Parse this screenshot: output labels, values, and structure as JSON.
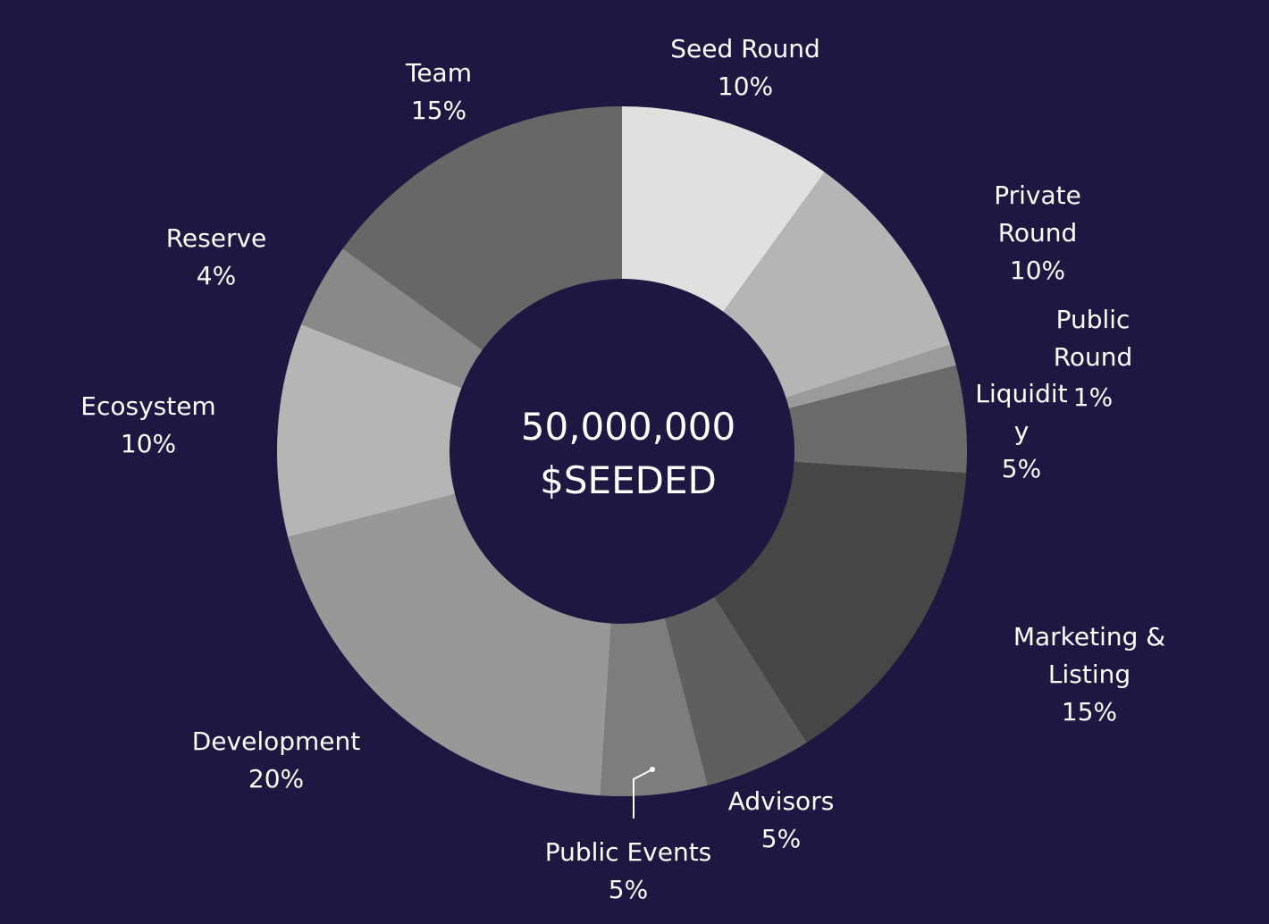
{
  "chart_data": {
    "type": "pie",
    "center": {
      "line1": "50,000,000",
      "line2": "$SEEDED"
    },
    "slices": [
      {
        "name": "Seed Round",
        "label_lines": [
          "Seed Round"
        ],
        "value": 10,
        "value_label": "10%",
        "color": "#e0e0e0"
      },
      {
        "name": "Private Round",
        "label_lines": [
          "Private",
          "Round"
        ],
        "value": 10,
        "value_label": "10%",
        "color": "#b5b5b5"
      },
      {
        "name": "Public Round",
        "label_lines": [
          "Public",
          "Round"
        ],
        "value": 1,
        "value_label": "1%",
        "color": "#9b9b9b"
      },
      {
        "name": "Liquidity",
        "label_lines": [
          "Liquidit",
          "y"
        ],
        "value": 5,
        "value_label": "5%",
        "color": "#6a6a6a"
      },
      {
        "name": "Marketing & Listing",
        "label_lines": [
          "Marketing &",
          "Listing"
        ],
        "value": 15,
        "value_label": "15%",
        "color": "#464646"
      },
      {
        "name": "Advisors",
        "label_lines": [
          "Advisors"
        ],
        "value": 5,
        "value_label": "5%",
        "color": "#5f5f5f"
      },
      {
        "name": "Public Events",
        "label_lines": [
          "Public Events"
        ],
        "value": 5,
        "value_label": "5%",
        "color": "#7d7d7d"
      },
      {
        "name": "Development",
        "label_lines": [
          "Development"
        ],
        "value": 20,
        "value_label": "20%",
        "color": "#989898"
      },
      {
        "name": "Ecosystem",
        "label_lines": [
          "Ecosystem"
        ],
        "value": 10,
        "value_label": "10%",
        "color": "#b5b5b5"
      },
      {
        "name": "Reserve",
        "label_lines": [
          "Reserve"
        ],
        "value": 4,
        "value_label": "4%",
        "color": "#898989"
      },
      {
        "name": "Team",
        "label_lines": [
          "Team"
        ],
        "value": 15,
        "value_label": "15%",
        "color": "#676767"
      }
    ]
  }
}
